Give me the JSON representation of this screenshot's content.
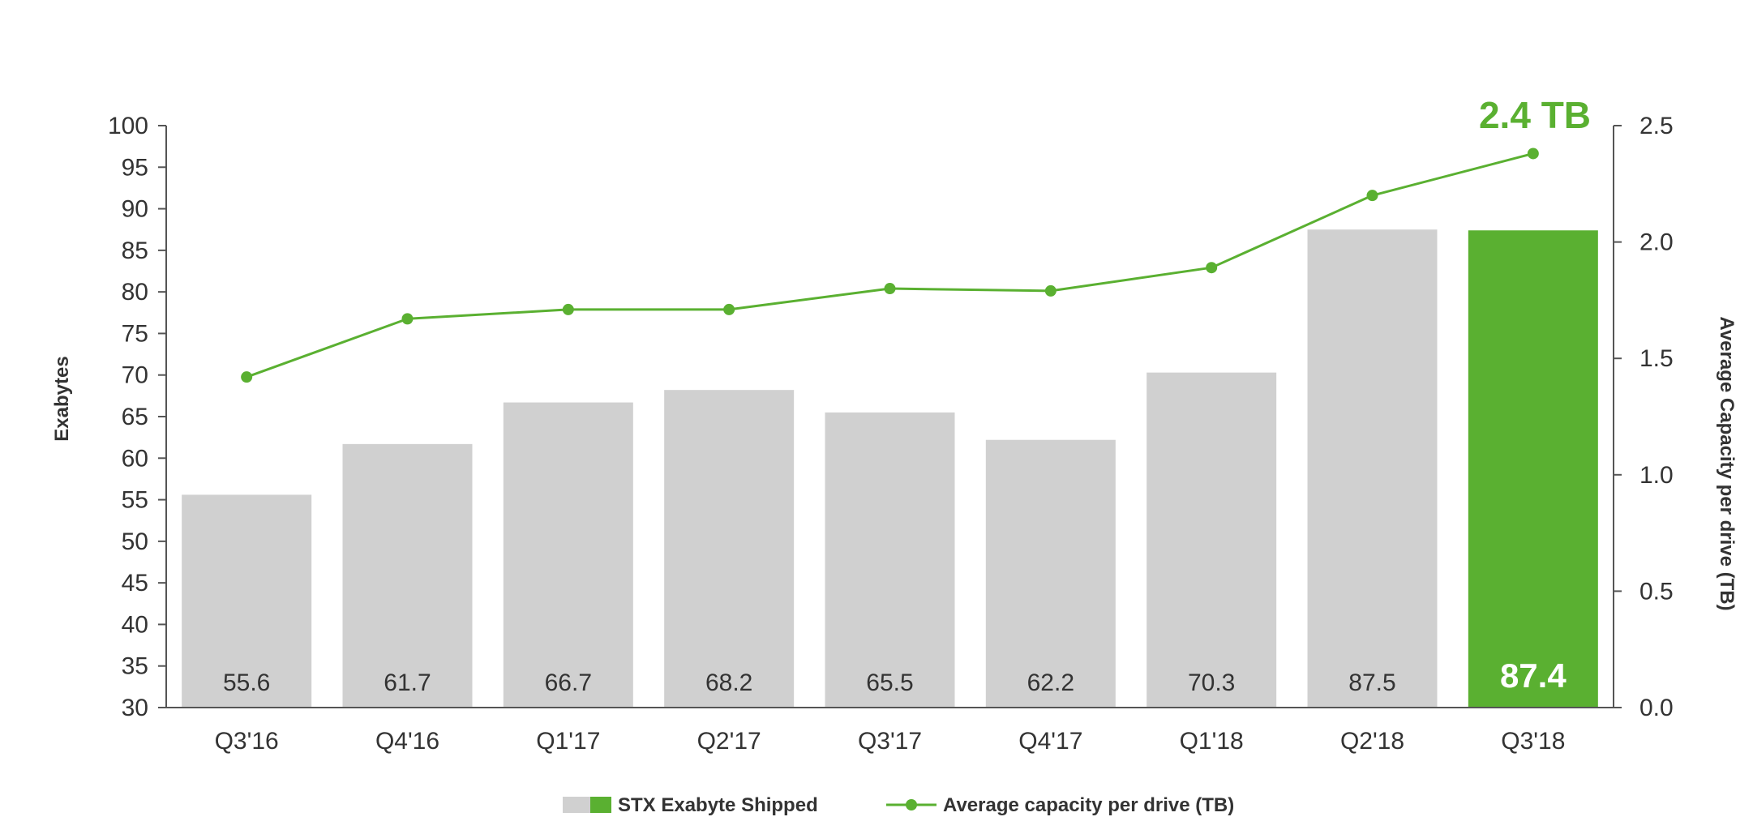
{
  "chart_data": {
    "type": "bar",
    "categories": [
      "Q3'16",
      "Q4'16",
      "Q1'17",
      "Q2'17",
      "Q3'17",
      "Q4'17",
      "Q1'18",
      "Q2'18",
      "Q3'18"
    ],
    "series": [
      {
        "name": "STX Exabyte Shipped",
        "type": "bar",
        "axis": "left",
        "values": [
          55.6,
          61.7,
          66.7,
          68.2,
          65.5,
          62.2,
          70.3,
          87.5,
          87.4
        ],
        "labels": [
          "55.6",
          "61.7",
          "66.7",
          "68.2",
          "65.5",
          "62.2",
          "70.3",
          "87.5",
          "87.4"
        ],
        "highlight_index": 8
      },
      {
        "name": "Average capacity per drive (TB)",
        "type": "line",
        "axis": "right",
        "values": [
          1.42,
          1.67,
          1.71,
          1.71,
          1.8,
          1.79,
          1.89,
          2.2,
          2.38
        ]
      }
    ],
    "annotation": "2.4 TB",
    "ylabel": "Exabytes",
    "y2label": "Average Capacity per drive (TB)",
    "ylim": [
      30,
      100
    ],
    "y2lim": [
      0.0,
      2.5
    ],
    "yticks": [
      "30",
      "35",
      "40",
      "45",
      "50",
      "55",
      "60",
      "65",
      "70",
      "75",
      "80",
      "85",
      "90",
      "95",
      "100"
    ],
    "y2ticks": [
      "0.0",
      "0.5",
      "1.0",
      "1.5",
      "2.0",
      "2.5"
    ],
    "grid": false,
    "legend_position": "bottom-center",
    "colors": {
      "bar": "#d0d0d0",
      "highlight": "#5ab031",
      "line": "#5ab031",
      "axis": "#555555",
      "text": "#333333",
      "label_dark": "#333333",
      "label_light": "#ffffff"
    }
  }
}
